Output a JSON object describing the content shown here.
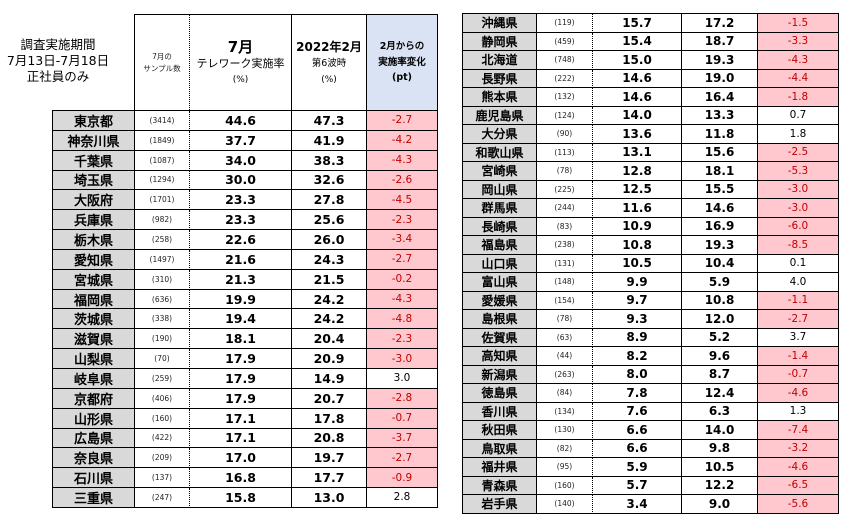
{
  "caption": {
    "lines": [
      "調査実施期間",
      "7月13日-7月18日",
      "正社員のみ"
    ]
  },
  "colors": {
    "prefecture_bg": "#d9d9d9",
    "decrease_bg": "#ffc7ce",
    "decrease_text": "#c00000",
    "change_header_bg": "#dae3f3"
  },
  "chart_data": {
    "type": "table",
    "column_headers": {
      "sample": [
        "7月の",
        "サンプル数"
      ],
      "july": [
        "7月",
        "テレワーク実施率",
        "(%)"
      ],
      "feb": [
        "2022年2月",
        "第6波時",
        "(%)"
      ],
      "change": [
        "2月からの",
        "実施率変化",
        "(pt)"
      ]
    },
    "tables": [
      {
        "rows": [
          {
            "prefecture": "東京都",
            "sample": "(3414)",
            "july": "44.6",
            "feb": "47.3",
            "change": "-2.7"
          },
          {
            "prefecture": "神奈川県",
            "sample": "(1849)",
            "july": "37.7",
            "feb": "41.9",
            "change": "-4.2"
          },
          {
            "prefecture": "千葉県",
            "sample": "(1087)",
            "july": "34.0",
            "feb": "38.3",
            "change": "-4.3"
          },
          {
            "prefecture": "埼玉県",
            "sample": "(1294)",
            "july": "30.0",
            "feb": "32.6",
            "change": "-2.6"
          },
          {
            "prefecture": "大阪府",
            "sample": "(1701)",
            "july": "23.3",
            "feb": "27.8",
            "change": "-4.5"
          },
          {
            "prefecture": "兵庫県",
            "sample": "(982)",
            "july": "23.3",
            "feb": "25.6",
            "change": "-2.3"
          },
          {
            "prefecture": "栃木県",
            "sample": "(258)",
            "july": "22.6",
            "feb": "26.0",
            "change": "-3.4"
          },
          {
            "prefecture": "愛知県",
            "sample": "(1497)",
            "july": "21.6",
            "feb": "24.3",
            "change": "-2.7"
          },
          {
            "prefecture": "宮城県",
            "sample": "(310)",
            "july": "21.3",
            "feb": "21.5",
            "change": "-0.2"
          },
          {
            "prefecture": "福岡県",
            "sample": "(636)",
            "july": "19.9",
            "feb": "24.2",
            "change": "-4.3"
          },
          {
            "prefecture": "茨城県",
            "sample": "(338)",
            "july": "19.4",
            "feb": "24.2",
            "change": "-4.8"
          },
          {
            "prefecture": "滋賀県",
            "sample": "(190)",
            "july": "18.1",
            "feb": "20.4",
            "change": "-2.3"
          },
          {
            "prefecture": "山梨県",
            "sample": "(70)",
            "july": "17.9",
            "feb": "20.9",
            "change": "-3.0"
          },
          {
            "prefecture": "岐阜県",
            "sample": "(259)",
            "july": "17.9",
            "feb": "14.9",
            "change": "3.0"
          },
          {
            "prefecture": "京都府",
            "sample": "(406)",
            "july": "17.9",
            "feb": "20.7",
            "change": "-2.8"
          },
          {
            "prefecture": "山形県",
            "sample": "(160)",
            "july": "17.1",
            "feb": "17.8",
            "change": "-0.7"
          },
          {
            "prefecture": "広島県",
            "sample": "(422)",
            "july": "17.1",
            "feb": "20.8",
            "change": "-3.7"
          },
          {
            "prefecture": "奈良県",
            "sample": "(209)",
            "july": "17.0",
            "feb": "19.7",
            "change": "-2.7"
          },
          {
            "prefecture": "石川県",
            "sample": "(137)",
            "july": "16.8",
            "feb": "17.7",
            "change": "-0.9"
          },
          {
            "prefecture": "三重県",
            "sample": "(247)",
            "july": "15.8",
            "feb": "13.0",
            "change": "2.8"
          }
        ]
      },
      {
        "rows": [
          {
            "prefecture": "沖縄県",
            "sample": "(119)",
            "july": "15.7",
            "feb": "17.2",
            "change": "-1.5"
          },
          {
            "prefecture": "静岡県",
            "sample": "(459)",
            "july": "15.4",
            "feb": "18.7",
            "change": "-3.3"
          },
          {
            "prefecture": "北海道",
            "sample": "(748)",
            "july": "15.0",
            "feb": "19.3",
            "change": "-4.3"
          },
          {
            "prefecture": "長野県",
            "sample": "(222)",
            "july": "14.6",
            "feb": "19.0",
            "change": "-4.4"
          },
          {
            "prefecture": "熊本県",
            "sample": "(132)",
            "july": "14.6",
            "feb": "16.4",
            "change": "-1.8"
          },
          {
            "prefecture": "鹿児島県",
            "sample": "(124)",
            "july": "14.0",
            "feb": "13.3",
            "change": "0.7"
          },
          {
            "prefecture": "大分県",
            "sample": "(90)",
            "july": "13.6",
            "feb": "11.8",
            "change": "1.8"
          },
          {
            "prefecture": "和歌山県",
            "sample": "(113)",
            "july": "13.1",
            "feb": "15.6",
            "change": "-2.5"
          },
          {
            "prefecture": "宮崎県",
            "sample": "(78)",
            "july": "12.8",
            "feb": "18.1",
            "change": "-5.3"
          },
          {
            "prefecture": "岡山県",
            "sample": "(225)",
            "july": "12.5",
            "feb": "15.5",
            "change": "-3.0"
          },
          {
            "prefecture": "群馬県",
            "sample": "(244)",
            "july": "11.6",
            "feb": "14.6",
            "change": "-3.0"
          },
          {
            "prefecture": "長崎県",
            "sample": "(83)",
            "july": "10.9",
            "feb": "16.9",
            "change": "-6.0"
          },
          {
            "prefecture": "福島県",
            "sample": "(238)",
            "july": "10.8",
            "feb": "19.3",
            "change": "-8.5"
          },
          {
            "prefecture": "山口県",
            "sample": "(131)",
            "july": "10.5",
            "feb": "10.4",
            "change": "0.1"
          },
          {
            "prefecture": "富山県",
            "sample": "(148)",
            "july": "9.9",
            "feb": "5.9",
            "change": "4.0"
          },
          {
            "prefecture": "愛媛県",
            "sample": "(154)",
            "july": "9.7",
            "feb": "10.8",
            "change": "-1.1"
          },
          {
            "prefecture": "島根県",
            "sample": "(78)",
            "july": "9.3",
            "feb": "12.0",
            "change": "-2.7"
          },
          {
            "prefecture": "佐賀県",
            "sample": "(63)",
            "july": "8.9",
            "feb": "5.2",
            "change": "3.7"
          },
          {
            "prefecture": "高知県",
            "sample": "(44)",
            "july": "8.2",
            "feb": "9.6",
            "change": "-1.4"
          },
          {
            "prefecture": "新潟県",
            "sample": "(263)",
            "july": "8.0",
            "feb": "8.7",
            "change": "-0.7"
          },
          {
            "prefecture": "徳島県",
            "sample": "(84)",
            "july": "7.8",
            "feb": "12.4",
            "change": "-4.6"
          },
          {
            "prefecture": "香川県",
            "sample": "(134)",
            "july": "7.6",
            "feb": "6.3",
            "change": "1.3"
          },
          {
            "prefecture": "秋田県",
            "sample": "(130)",
            "july": "6.6",
            "feb": "14.0",
            "change": "-7.4"
          },
          {
            "prefecture": "鳥取県",
            "sample": "(82)",
            "july": "6.6",
            "feb": "9.8",
            "change": "-3.2"
          },
          {
            "prefecture": "福井県",
            "sample": "(95)",
            "july": "5.9",
            "feb": "10.5",
            "change": "-4.6"
          },
          {
            "prefecture": "青森県",
            "sample": "(160)",
            "july": "5.7",
            "feb": "12.2",
            "change": "-6.5"
          },
          {
            "prefecture": "岩手県",
            "sample": "(140)",
            "july": "3.4",
            "feb": "9.0",
            "change": "-5.6"
          }
        ]
      }
    ]
  }
}
